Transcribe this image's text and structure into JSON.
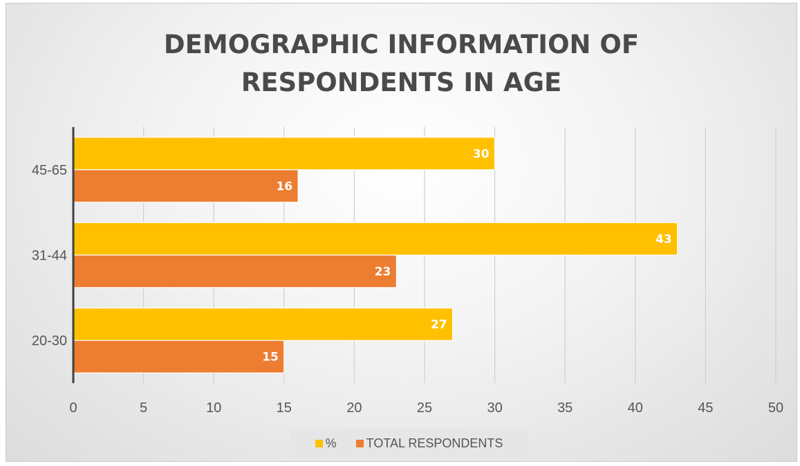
{
  "chart_data": {
    "type": "bar",
    "orientation": "horizontal",
    "title_lines": [
      "DEMOGRAPHIC INFORMATION OF",
      "RESPONDENTS IN AGE"
    ],
    "categories": [
      "20-30",
      "31-44",
      "45-65"
    ],
    "series": [
      {
        "name": "%",
        "values": [
          27,
          43,
          30
        ],
        "color": "#FFC000"
      },
      {
        "name": "TOTAL RESPONDENTS",
        "values": [
          15,
          23,
          16
        ],
        "color": "#ED7D31"
      }
    ],
    "x_ticks": [
      "0",
      "5",
      "10",
      "15",
      "20",
      "25",
      "30",
      "35",
      "40",
      "45",
      "50"
    ],
    "xlim": [
      0,
      50
    ],
    "grid": true,
    "legend_position": "bottom",
    "data_labels": true
  }
}
